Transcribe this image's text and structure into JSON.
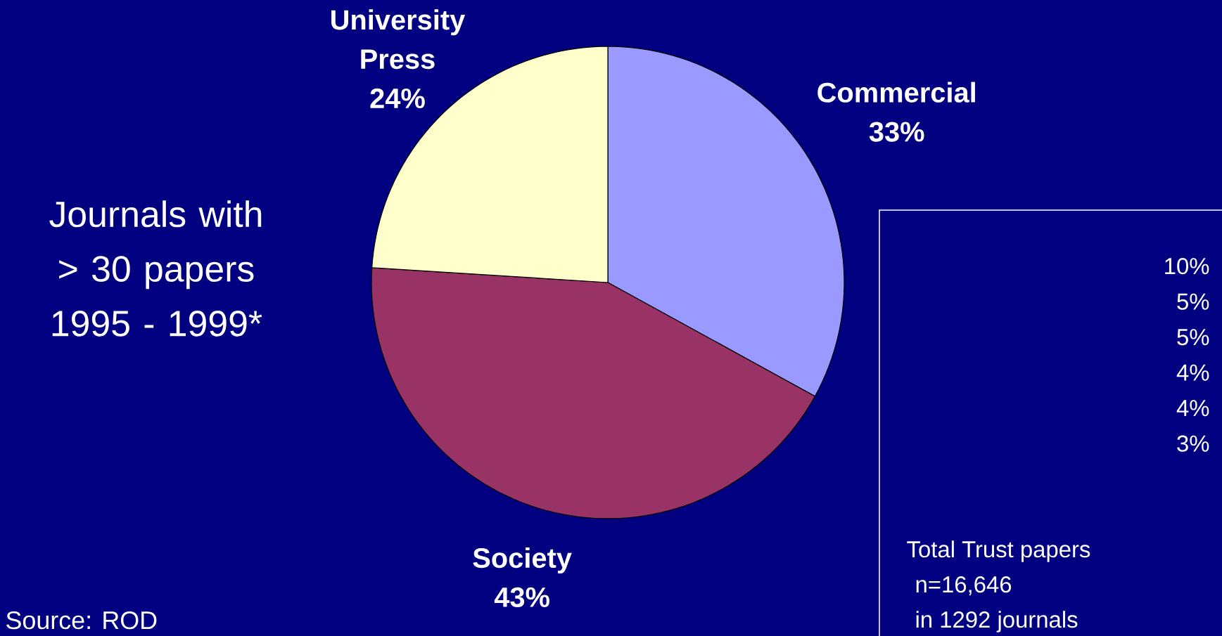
{
  "chart_data": {
    "type": "pie",
    "title": "Journals with > 30 papers 1995 - 1999*",
    "categories": [
      "Commercial",
      "Society",
      "University Press"
    ],
    "values": [
      33,
      43,
      24
    ],
    "value_labels": [
      "33%",
      "43%",
      "24%"
    ],
    "colors": [
      "#9999ff",
      "#993366",
      "#ffffcc"
    ],
    "annotations": [
      "Source: ROD",
      "10%",
      "5%",
      "5%",
      "4%",
      "4%",
      "3%",
      "Total Trust papers",
      "n=16,646",
      "in 1292 journals"
    ]
  }
}
